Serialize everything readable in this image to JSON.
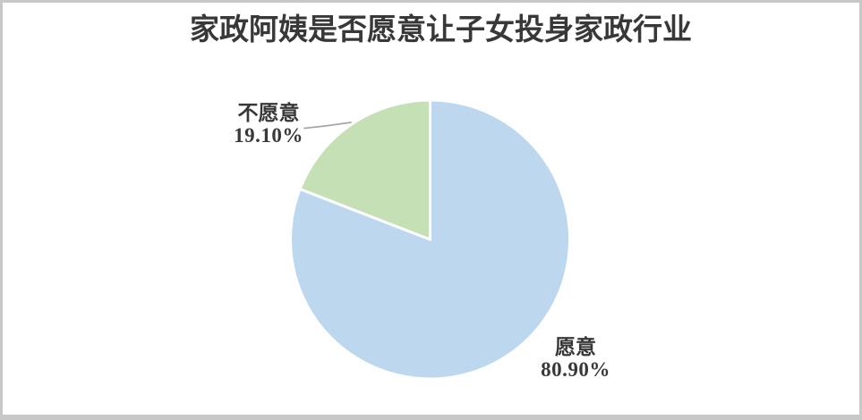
{
  "chart_data": {
    "type": "pie",
    "title": "家政阿姨是否愿意让子女投身家政行业",
    "labels": [
      "愿意",
      "不愿意"
    ],
    "slice_ids": [
      "willing",
      "unwilling"
    ],
    "values": [
      80.9,
      19.1
    ],
    "value_labels": [
      "80.90%",
      "19.10%"
    ],
    "colors": [
      "#bdd7ee",
      "#c5e0b4"
    ],
    "start_angle": "top",
    "direction": "clockwise",
    "legend": "none",
    "labels_position": "outside",
    "separator_color": "#ffffff",
    "leader_line_color": "#a6a6a6",
    "title_color": "#383838",
    "label_color": "#383838",
    "frame_border_color": "#c8c8c8"
  }
}
